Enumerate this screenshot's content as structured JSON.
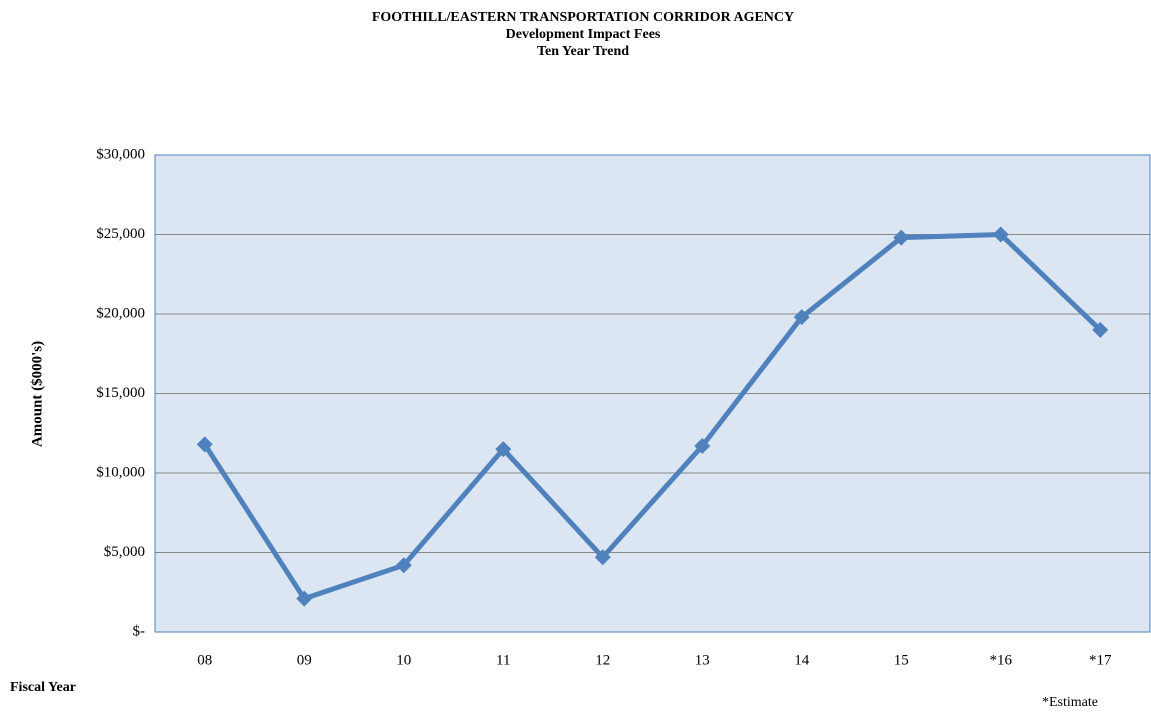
{
  "chart_data": {
    "type": "line",
    "title": [
      "FOOTHILL/EASTERN  TRANSPORTATION  CORRIDOR  AGENCY",
      "Development Impact Fees",
      "Ten Year Trend"
    ],
    "y_label": "Amount  ($000's)",
    "x_label": "Fiscal Year",
    "note": "*Estimate",
    "categories": [
      "08",
      "09",
      "10",
      "11",
      "12",
      "13",
      "14",
      "15",
      "*16",
      "*17"
    ],
    "series": [
      {
        "name": "Development Impact Fees",
        "color": "#4f81bd",
        "values": [
          11800,
          2100,
          4200,
          11500,
          4700,
          11700,
          19800,
          24800,
          25000,
          19000
        ]
      }
    ],
    "ylim": [
      0,
      30000
    ],
    "yticks": [
      {
        "value": 0,
        "label": "$-"
      },
      {
        "value": 5000,
        "label": "$5,000"
      },
      {
        "value": 10000,
        "label": "$10,000"
      },
      {
        "value": 15000,
        "label": "$15,000"
      },
      {
        "value": 20000,
        "label": "$20,000"
      },
      {
        "value": 25000,
        "label": "$25,000"
      },
      {
        "value": 30000,
        "label": "$30,000"
      }
    ],
    "grid": true,
    "plot_background": "#dce6f2"
  }
}
